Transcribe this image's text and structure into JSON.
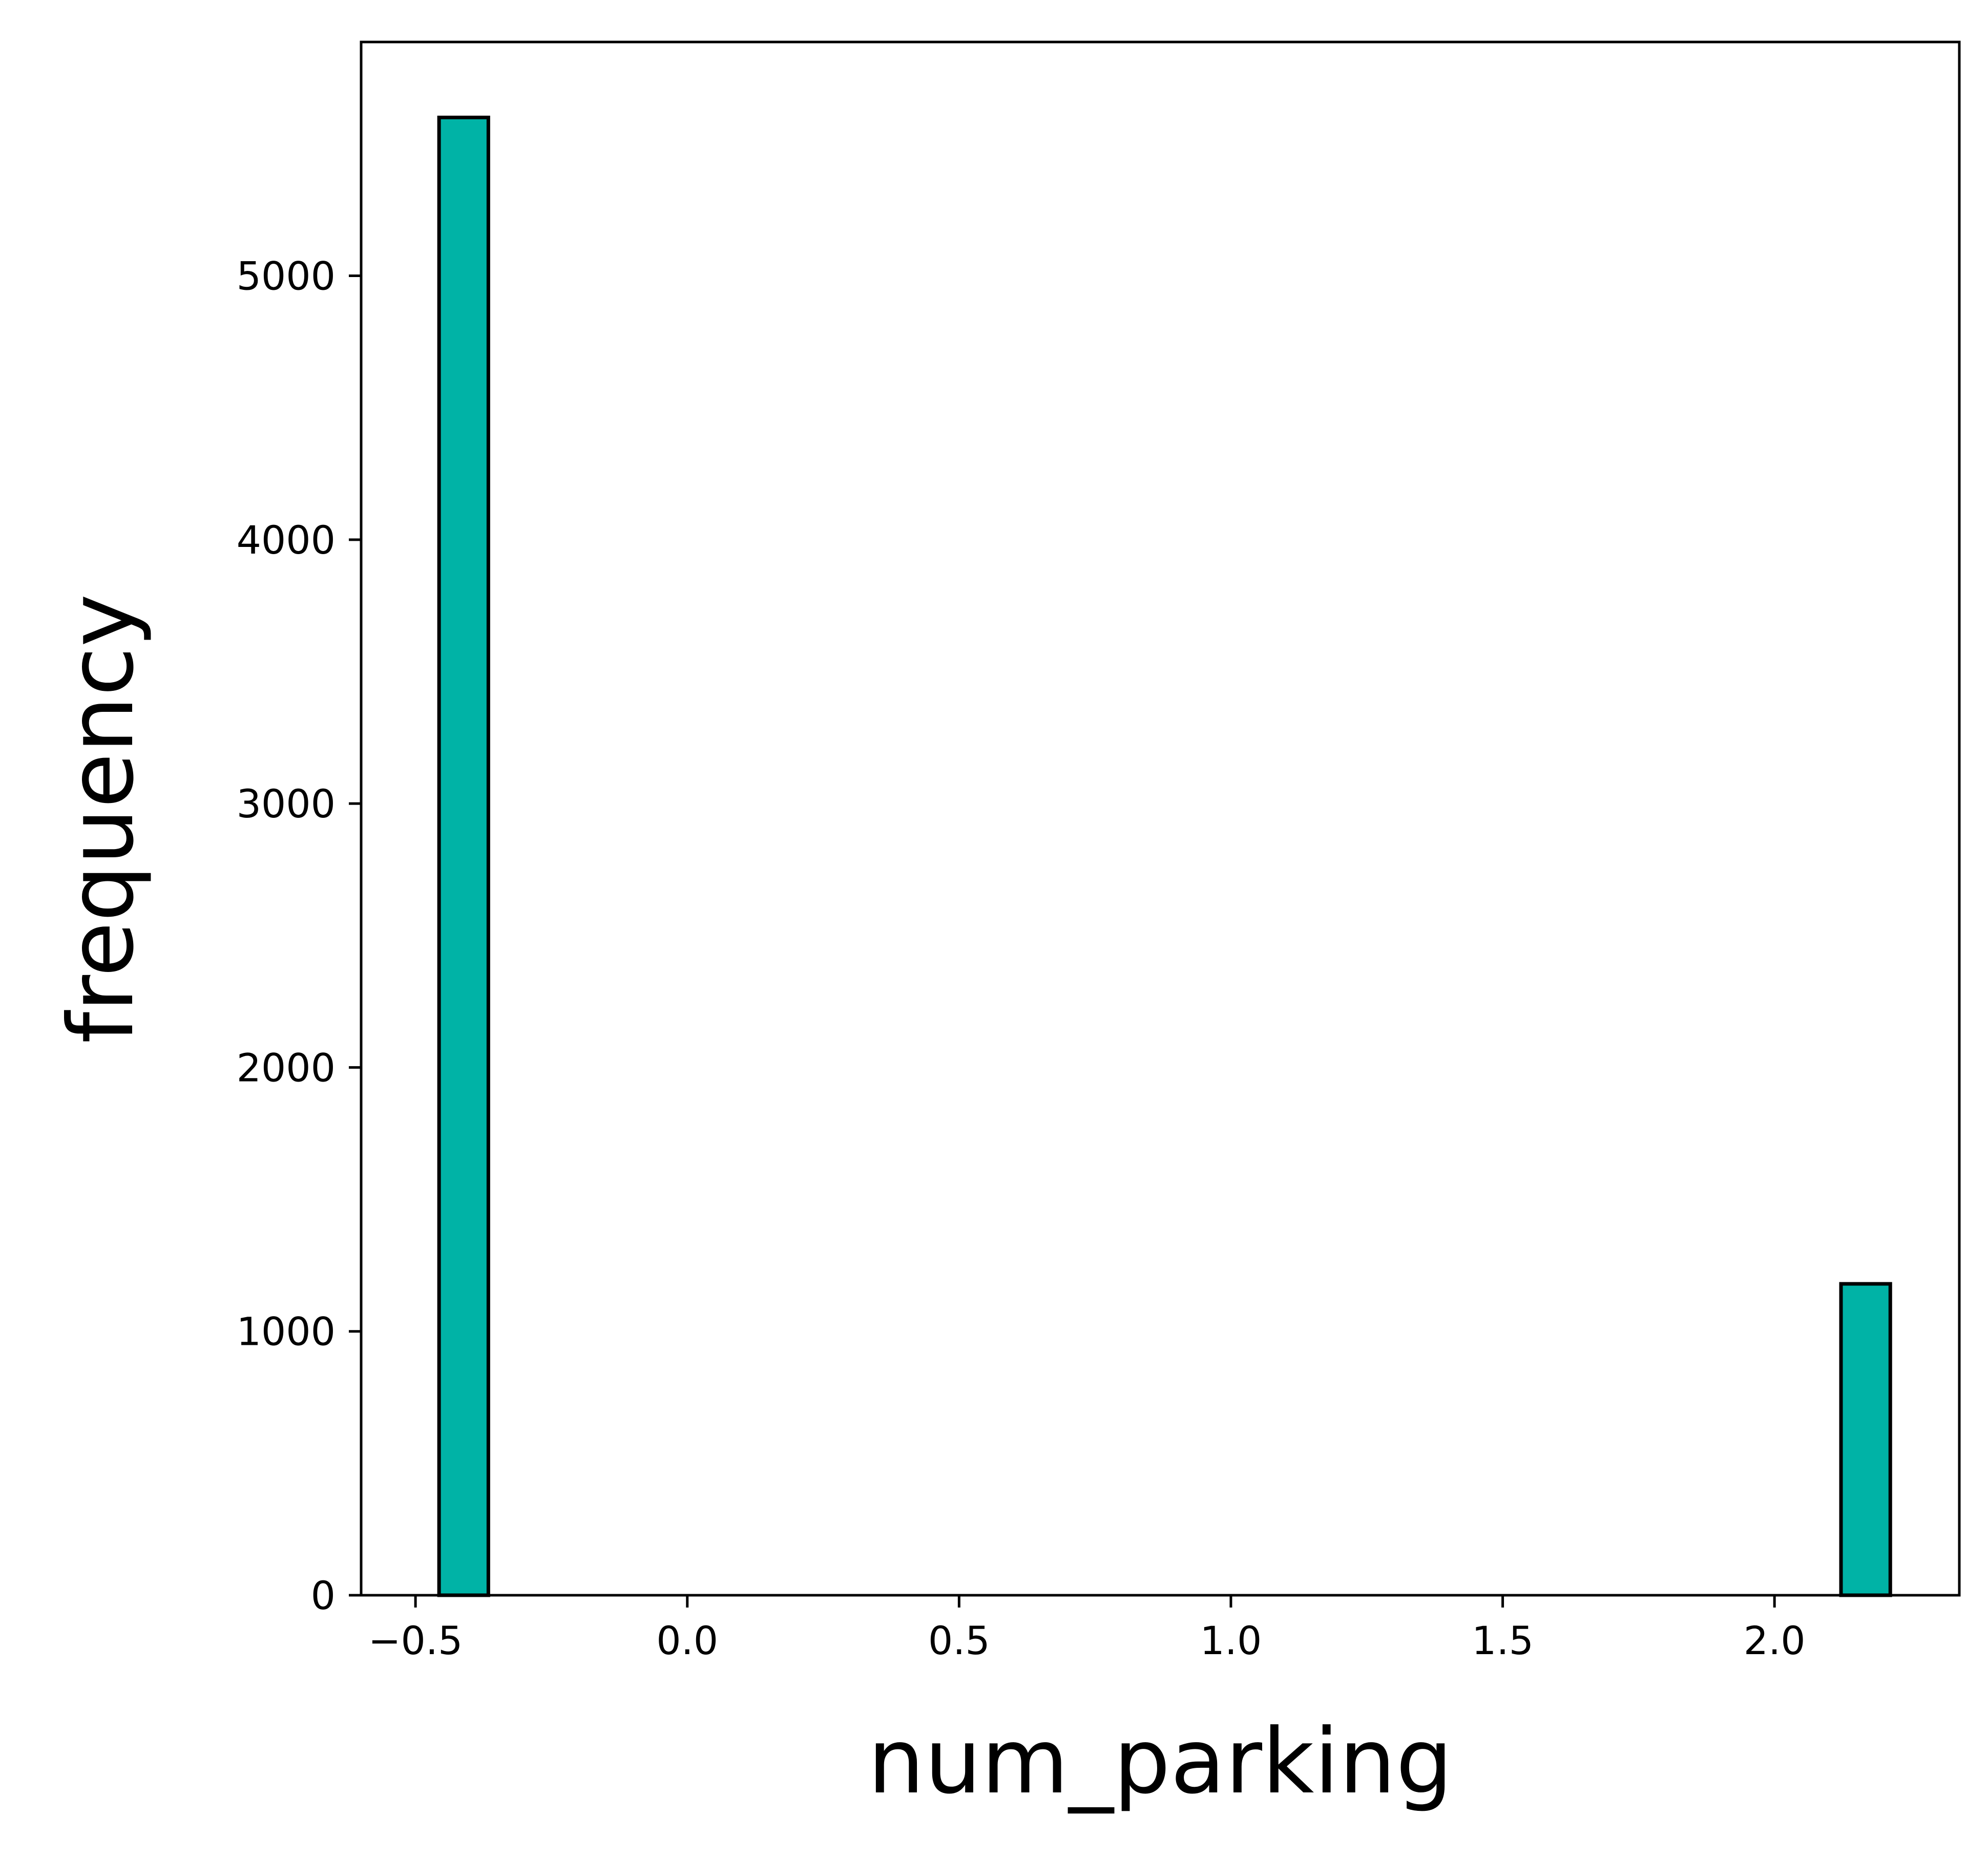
{
  "chart_data": {
    "type": "bar",
    "title": "",
    "xlabel": "num_parking",
    "ylabel": "frequency",
    "xlim": [
      -0.6,
      2.34
    ],
    "ylim": [
      0,
      5886
    ],
    "grid": false,
    "legend": "none",
    "bar_width": 0.0907,
    "bars": [
      {
        "x": -0.4113,
        "value": 5600
      },
      {
        "x": 2.1677,
        "value": 1180
      }
    ],
    "x_ticks": [
      {
        "value": -0.5,
        "label": "−0.5"
      },
      {
        "value": 0.0,
        "label": "0.0"
      },
      {
        "value": 0.5,
        "label": "0.5"
      },
      {
        "value": 1.0,
        "label": "1.0"
      },
      {
        "value": 1.5,
        "label": "1.5"
      },
      {
        "value": 2.0,
        "label": "2.0"
      }
    ],
    "y_ticks": [
      {
        "value": 0,
        "label": "0"
      },
      {
        "value": 1000,
        "label": "1000"
      },
      {
        "value": 2000,
        "label": "2000"
      },
      {
        "value": 3000,
        "label": "3000"
      },
      {
        "value": 4000,
        "label": "4000"
      },
      {
        "value": 5000,
        "label": "5000"
      }
    ],
    "colors": {
      "bar_fill": "#00b3a6",
      "bar_edge": "#000000",
      "axes": "#000000"
    }
  }
}
